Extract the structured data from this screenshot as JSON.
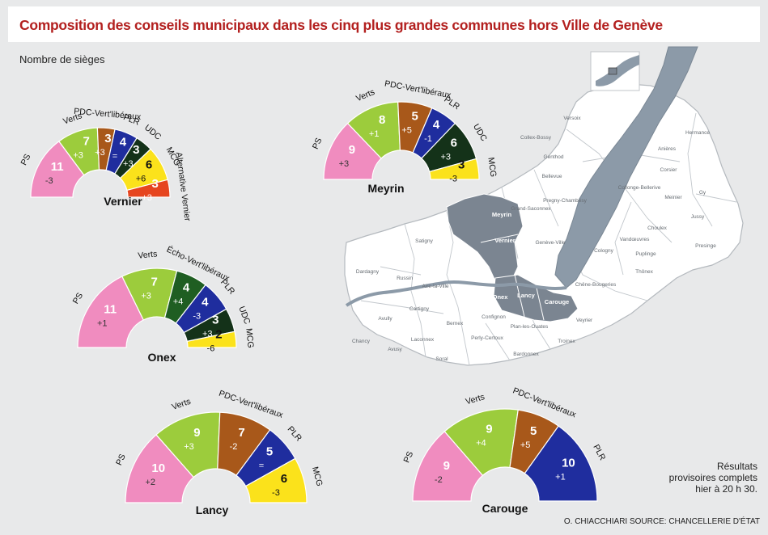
{
  "title": "Composition des conseils municipaux dans les cinq plus grandes communes hors Ville de Genève",
  "subtitle": "Nombre de sièges",
  "note_lines": [
    "Résultats",
    "provisoires complets",
    "hier à 20 h 30."
  ],
  "credit": "O. CHIACCHIARI SOURCE: CHANCELLERIE D'ÉTAT",
  "colors": {
    "PS": "#f08cbf",
    "Verts": "#9ccc3c",
    "PDC": "#a8581a",
    "PLR": "#1f2d9e",
    "UDC": "#143219",
    "MCG": "#fbe21b",
    "AltVernier": "#e6451f",
    "Echo": "#1f5e22",
    "map_lake": "#8c9aa8",
    "map_highlight": "#7b8591",
    "map_land": "#ffffff",
    "map_border": "#b4b9be"
  },
  "map": {
    "communes": [
      "Versoix",
      "Collex-Bossy",
      "Genthod",
      "Bellevue",
      "Pregny-Chambésy",
      "Grand-Saconnex",
      "Meyrin",
      "Satigny",
      "Vernier",
      "Genève-Ville",
      "Russin",
      "Dardagny",
      "Aire-la-Ville",
      "Cartigny",
      "Avully",
      "Chancy",
      "Avusy",
      "Laconnex",
      "Soral",
      "Bernex",
      "Confignon",
      "Onex",
      "Lancy",
      "Carouge",
      "Perly-Certoux",
      "Plan-les-Ouates",
      "Bardonnex",
      "Troinex",
      "Veyrier",
      "Chêne-Bougeries",
      "Thônex",
      "Cologny",
      "Vandœuvres",
      "Choulex",
      "Puplinge",
      "Presinge",
      "Jussy",
      "Gy",
      "Meinier",
      "Collonge-Bellerive",
      "Corsier",
      "Anières",
      "Hermance"
    ],
    "highlighted": [
      "Meyrin",
      "Vernier",
      "Onex",
      "Lancy",
      "Carouge"
    ]
  },
  "chart_data": [
    {
      "type": "pie",
      "variant": "parliament-semicircle",
      "commune": "Vernier",
      "segments": [
        {
          "party": "PS",
          "seats": 11,
          "change": "-3"
        },
        {
          "party": "Verts",
          "seats": 7,
          "change": "+3"
        },
        {
          "party": "PDC-Vert'libéraux",
          "seats": 3,
          "change": "+3"
        },
        {
          "party": "PLR",
          "seats": 4,
          "change": "="
        },
        {
          "party": "UDC",
          "seats": 3,
          "change": "+3"
        },
        {
          "party": "MCG",
          "seats": 6,
          "change": "+6"
        },
        {
          "party": "Alternative Vernier",
          "seats": 3,
          "change": "+3"
        }
      ]
    },
    {
      "type": "pie",
      "variant": "parliament-semicircle",
      "commune": "Meyrin",
      "segments": [
        {
          "party": "PS",
          "seats": 9,
          "change": "+3"
        },
        {
          "party": "Verts",
          "seats": 8,
          "change": "+1"
        },
        {
          "party": "PDC-Vert'libéraux",
          "seats": 5,
          "change": "+5"
        },
        {
          "party": "PLR",
          "seats": 4,
          "change": "-1"
        },
        {
          "party": "UDC",
          "seats": 6,
          "change": "+3"
        },
        {
          "party": "MCG",
          "seats": 3,
          "change": "-3"
        }
      ]
    },
    {
      "type": "pie",
      "variant": "parliament-semicircle",
      "commune": "Onex",
      "segments": [
        {
          "party": "PS",
          "seats": 11,
          "change": "+1"
        },
        {
          "party": "Verts",
          "seats": 7,
          "change": "+3"
        },
        {
          "party": "Écho-Vert'libéraux",
          "seats": 4,
          "change": "+4"
        },
        {
          "party": "PLR",
          "seats": 4,
          "change": "-3"
        },
        {
          "party": "UDC",
          "seats": 3,
          "change": "+3"
        },
        {
          "party": "MCG",
          "seats": 2,
          "change": "-6"
        }
      ]
    },
    {
      "type": "pie",
      "variant": "parliament-semicircle",
      "commune": "Lancy",
      "segments": [
        {
          "party": "PS",
          "seats": 10,
          "change": "+2"
        },
        {
          "party": "Verts",
          "seats": 9,
          "change": "+3"
        },
        {
          "party": "PDC-Vert'libéraux",
          "seats": 7,
          "change": "-2"
        },
        {
          "party": "PLR",
          "seats": 5,
          "change": "="
        },
        {
          "party": "MCG",
          "seats": 6,
          "change": "-3"
        }
      ]
    },
    {
      "type": "pie",
      "variant": "parliament-semicircle",
      "commune": "Carouge",
      "segments": [
        {
          "party": "PS",
          "seats": 9,
          "change": "-2"
        },
        {
          "party": "Verts",
          "seats": 9,
          "change": "+4"
        },
        {
          "party": "PDC-Vert'libéraux",
          "seats": 5,
          "change": "+5"
        },
        {
          "party": "PLR",
          "seats": 10,
          "change": "+1"
        }
      ]
    }
  ]
}
